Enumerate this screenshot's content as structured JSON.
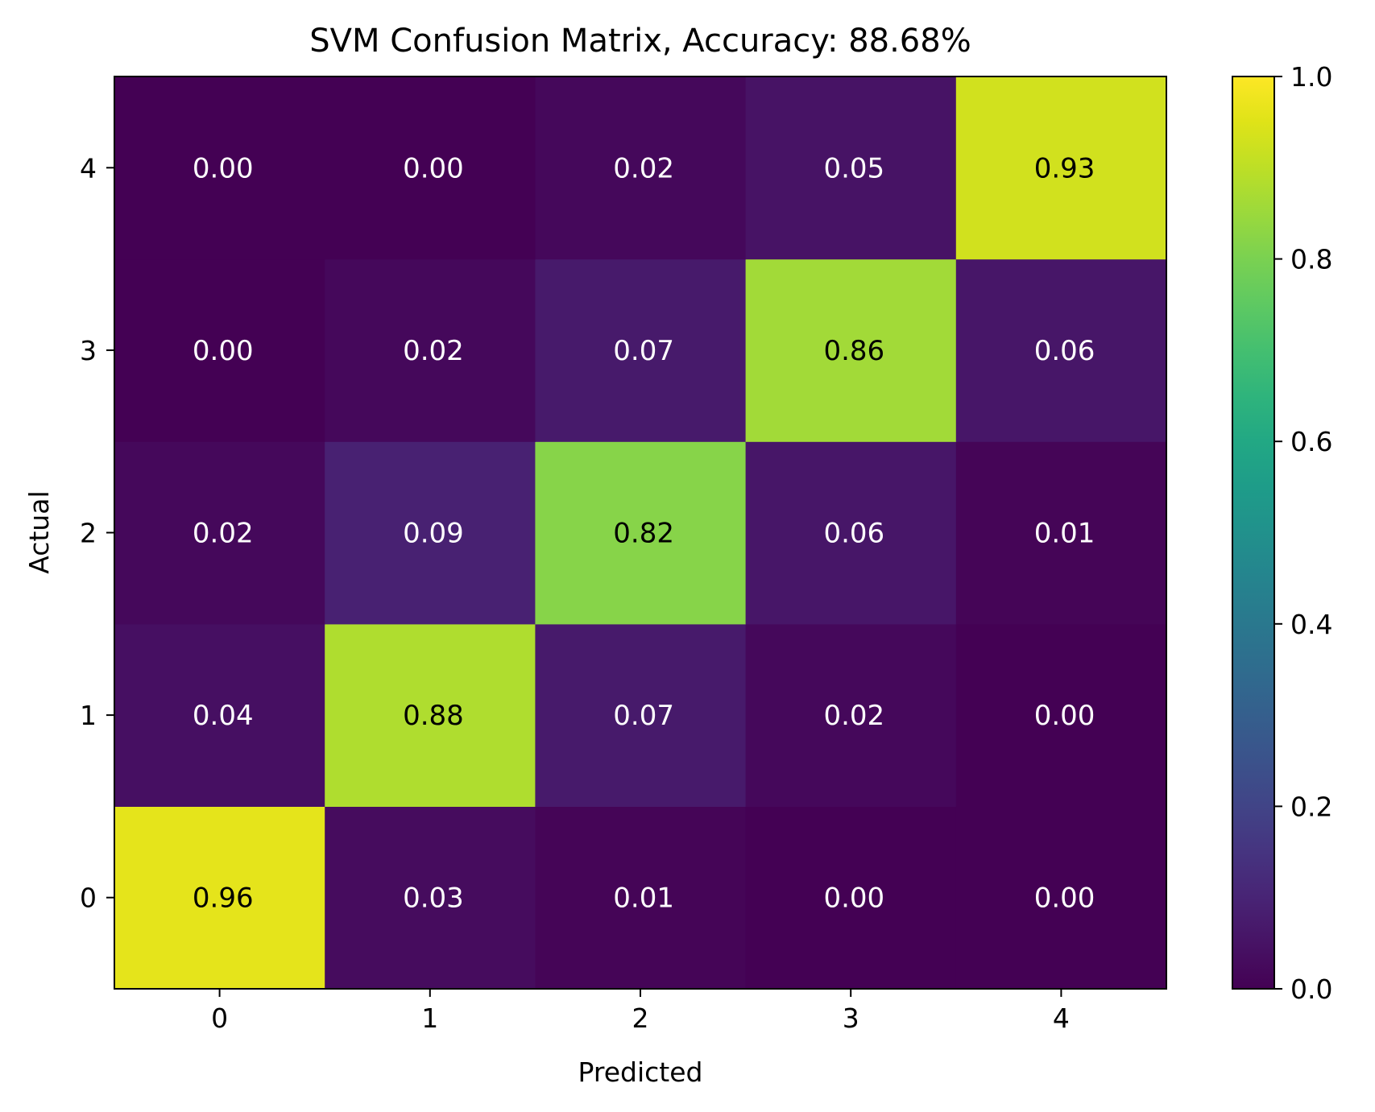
{
  "chart_data": {
    "type": "heatmap",
    "title": "SVM Confusion Matrix, Accuracy: 88.68%",
    "xlabel": "Predicted",
    "ylabel": "Actual",
    "x_ticks": [
      "0",
      "1",
      "2",
      "3",
      "4"
    ],
    "y_ticks": [
      "0",
      "1",
      "2",
      "3",
      "4"
    ],
    "y_order": "bottom-to-top",
    "values": [
      [
        0.96,
        0.03,
        0.01,
        0.0,
        0.0
      ],
      [
        0.04,
        0.88,
        0.07,
        0.02,
        0.0
      ],
      [
        0.02,
        0.09,
        0.82,
        0.06,
        0.01
      ],
      [
        0.0,
        0.02,
        0.07,
        0.86,
        0.06
      ],
      [
        0.0,
        0.0,
        0.02,
        0.05,
        0.93
      ]
    ],
    "value_format": "2 decimals",
    "colormap": "viridis",
    "colorbar": {
      "range": [
        0.0,
        1.0
      ],
      "ticks": [
        "0.0",
        "0.2",
        "0.4",
        "0.6",
        "0.8",
        "1.0"
      ]
    },
    "text_color_light": "#ffffff",
    "text_color_dark": "#000000"
  }
}
